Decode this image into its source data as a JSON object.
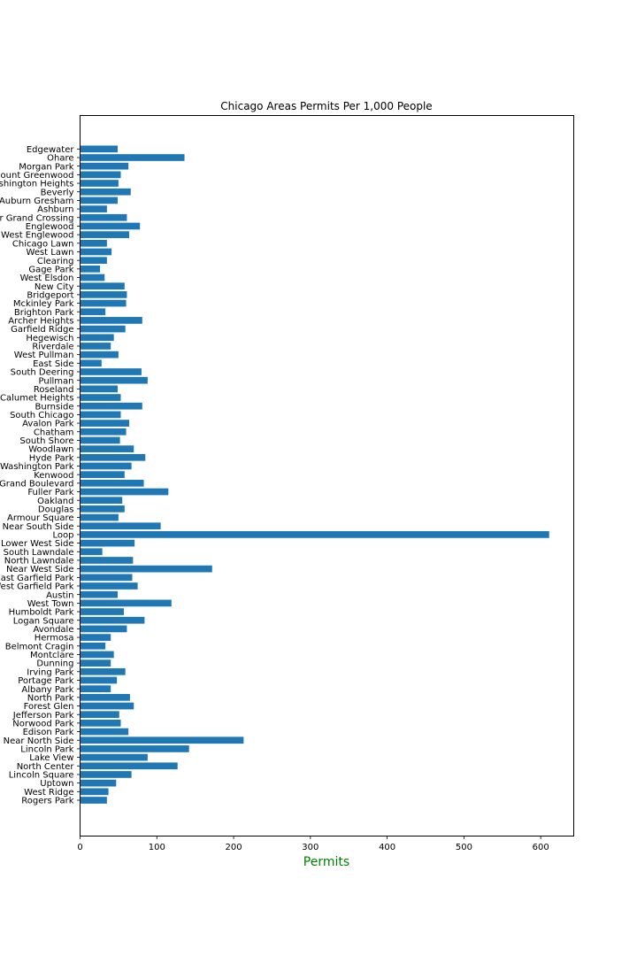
{
  "chart_data": {
    "type": "bar",
    "orientation": "horizontal",
    "title": "Chicago Areas Permits Per 1,000 People",
    "xlabel": "Permits",
    "ylabel": "",
    "xlim": [
      0,
      643
    ],
    "x_ticks": [
      0,
      100,
      200,
      300,
      400,
      500,
      600
    ],
    "grid": false,
    "legend": "none",
    "bar_color": "#1f77b4",
    "xlabel_color": "#008000",
    "categories": [
      "Rogers Park",
      "West Ridge",
      "Uptown",
      "Lincoln Square",
      "North Center",
      "Lake View",
      "Lincoln Park",
      "Near North Side",
      "Edison Park",
      "Norwood Park",
      "Jefferson Park",
      "Forest Glen",
      "North Park",
      "Albany Park",
      "Portage Park",
      "Irving Park",
      "Dunning",
      "Montclare",
      "Belmont Cragin",
      "Hermosa",
      "Avondale",
      "Logan Square",
      "Humboldt Park",
      "West Town",
      "Austin",
      "West Garfield Park",
      "East Garfield Park",
      "Near West Side",
      "North Lawndale",
      "South Lawndale",
      "Lower West Side",
      "Loop",
      "Near South Side",
      "Armour Square",
      "Douglas",
      "Oakland",
      "Fuller Park",
      "Grand Boulevard",
      "Kenwood",
      "Washington Park",
      "Hyde Park",
      "Woodlawn",
      "South Shore",
      "Chatham",
      "Avalon Park",
      "South Chicago",
      "Burnside",
      "Calumet Heights",
      "Roseland",
      "Pullman",
      "South Deering",
      "East Side",
      "West Pullman",
      "Riverdale",
      "Hegewisch",
      "Garfield Ridge",
      "Archer Heights",
      "Brighton Park",
      "Mckinley Park",
      "Bridgeport",
      "New City",
      "West Elsdon",
      "Gage Park",
      "Clearing",
      "West Lawn",
      "Chicago Lawn",
      "West Englewood",
      "Englewood",
      "Greater Grand Crossing",
      "Ashburn",
      "Auburn Gresham",
      "Beverly",
      "Washington Heights",
      "Mount Greenwood",
      "Morgan Park",
      "Ohare",
      "Edgewater"
    ],
    "values": [
      35,
      37,
      47,
      67,
      127,
      88,
      142,
      213,
      63,
      53,
      51,
      70,
      65,
      40,
      48,
      59,
      40,
      44,
      33,
      40,
      61,
      84,
      57,
      119,
      49,
      75,
      68,
      172,
      69,
      29,
      71,
      611,
      105,
      50,
      58,
      55,
      115,
      83,
      58,
      67,
      85,
      70,
      52,
      60,
      64,
      53,
      81,
      53,
      49,
      88,
      80,
      28,
      50,
      40,
      44,
      59,
      81,
      33,
      60,
      61,
      58,
      32,
      26,
      35,
      41,
      35,
      64,
      78,
      61,
      35,
      49,
      66,
      50,
      53,
      63,
      136,
      49
    ]
  }
}
